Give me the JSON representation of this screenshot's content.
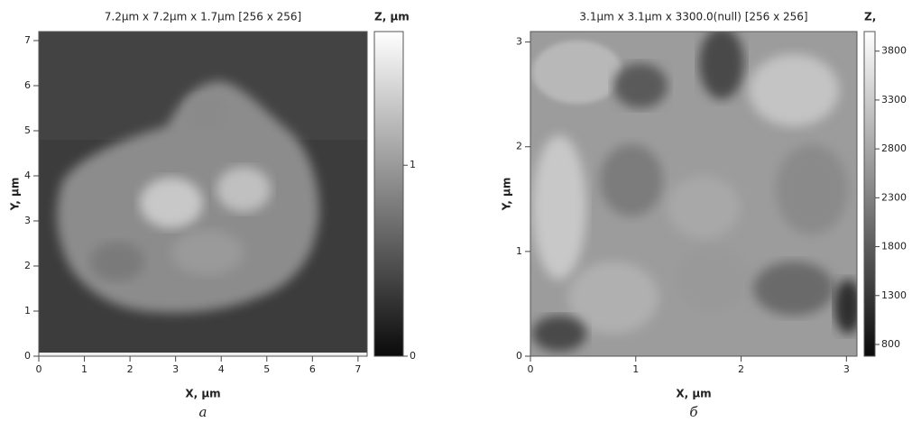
{
  "chart_data": [
    {
      "type": "image",
      "title": "7.2µm x 7.2µm x 1.7µm [256 x 256]",
      "x_label": "X, µm",
      "y_label": "Y, µm",
      "colorbar_label": "Z, µm",
      "caption": "а",
      "xlim": [
        0,
        7.2
      ],
      "ylim": [
        0,
        7.2
      ],
      "xticks": [
        0,
        1,
        2,
        3,
        4,
        5,
        6,
        7
      ],
      "yticks": [
        0,
        1,
        2,
        3,
        4,
        5,
        6,
        7
      ],
      "clim": [
        0,
        1.7
      ],
      "cticks": [
        0,
        1
      ]
    },
    {
      "type": "image",
      "title": "3.1µm x 3.1µm x 3300.0(null) [256 x 256]",
      "x_label": "X, µm",
      "y_label": "Y, µm",
      "colorbar_label": "Z,",
      "caption": "б",
      "xlim": [
        0,
        3.1
      ],
      "ylim": [
        0,
        3.1
      ],
      "xticks": [
        0,
        1,
        2,
        3
      ],
      "yticks": [
        0,
        1,
        2,
        3
      ],
      "clim": [
        680,
        4000
      ],
      "cticks": [
        800,
        1300,
        1800,
        2300,
        2800,
        3300,
        3800
      ]
    }
  ]
}
